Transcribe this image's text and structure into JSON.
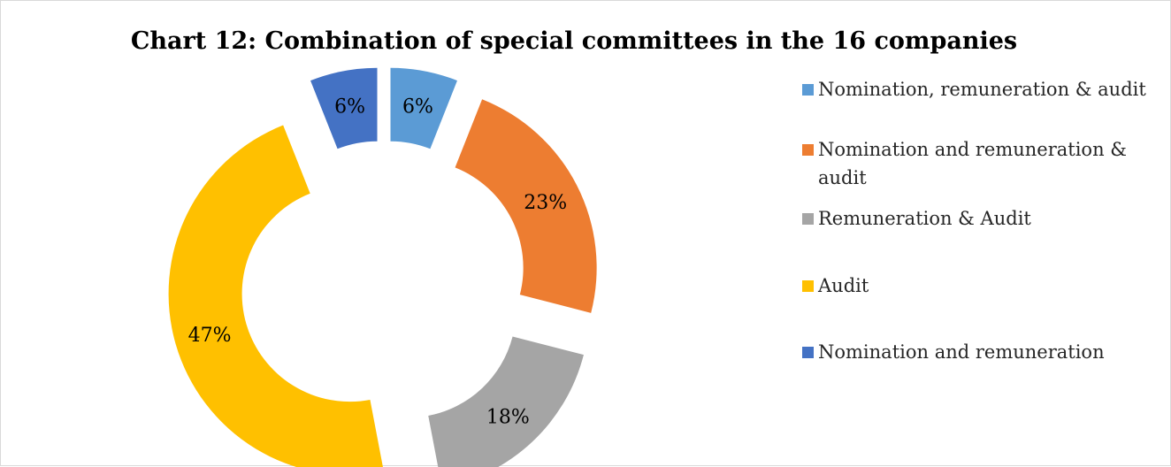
{
  "chart_data": {
    "type": "pie",
    "style": "doughnut-exploded",
    "title": "Chart 12: Combination of special committees in the 16 companies",
    "legend_position": "right",
    "slices": [
      {
        "name": "Nomination, remuneration & audit",
        "value": 6,
        "label": "6%",
        "color": "#5B9BD5"
      },
      {
        "name": "Nomination and remuneration & audit",
        "value": 23,
        "label": "23%",
        "color": "#ED7D31"
      },
      {
        "name": "Remuneration & Audit",
        "value": 18,
        "label": "18%",
        "color": "#A5A5A5"
      },
      {
        "name": "Audit",
        "value": 47,
        "label": "47%",
        "color": "#FFC000"
      },
      {
        "name": "Nomination and remuneration",
        "value": 6,
        "label": "6%",
        "color": "#4472C4"
      }
    ]
  }
}
